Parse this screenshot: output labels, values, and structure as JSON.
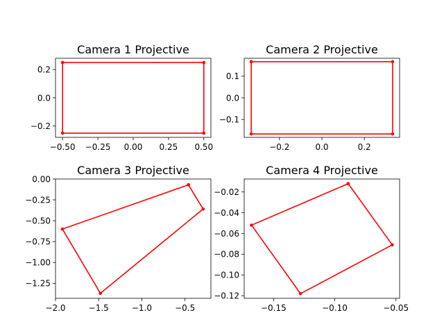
{
  "chart_data": [
    {
      "type": "line",
      "title": "Camera 1 Projective",
      "xlim": [
        -0.55,
        0.55
      ],
      "ylim": [
        -0.28,
        0.28
      ],
      "xticks": [
        -0.5,
        -0.25,
        0.0,
        0.25,
        0.5
      ],
      "xticklabels": [
        "−0.50",
        "−0.25",
        "0.00",
        "0.25",
        "0.50"
      ],
      "yticks": [
        -0.2,
        0.0,
        0.2
      ],
      "yticklabels": [
        "−0.2",
        "0.0",
        "0.2"
      ],
      "color": "#ff0000",
      "x": [
        -0.5,
        0.5,
        0.5,
        -0.5,
        -0.5
      ],
      "y": [
        0.25,
        0.25,
        -0.25,
        -0.25,
        0.25
      ]
    },
    {
      "type": "line",
      "title": "Camera 2 Projective",
      "xlim": [
        -0.366,
        0.366
      ],
      "ylim": [
        -0.183,
        0.183
      ],
      "xticks": [
        -0.2,
        0.0,
        0.2
      ],
      "xticklabels": [
        "−0.2",
        "0.0",
        "0.2"
      ],
      "yticks": [
        -0.1,
        0.0,
        0.1
      ],
      "yticklabels": [
        "−0.1",
        "0.0",
        "0.1"
      ],
      "color": "#ff0000",
      "x": [
        -0.333,
        0.333,
        0.333,
        -0.333,
        -0.333
      ],
      "y": [
        0.167,
        0.167,
        -0.167,
        -0.167,
        0.167
      ]
    },
    {
      "type": "line",
      "title": "Camera 3 Projective",
      "xlim": [
        -2.0,
        -0.2
      ],
      "ylim": [
        -1.43,
        0.0
      ],
      "xticks": [
        -2.0,
        -1.5,
        -1.0,
        -0.5
      ],
      "xticklabels": [
        "−2.0",
        "−1.5",
        "−1.0",
        "−0.5"
      ],
      "yticks": [
        0.0,
        -0.25,
        -0.5,
        -0.75,
        -1.0,
        -1.25
      ],
      "yticklabels": [
        "0.00",
        "−0.25",
        "−0.50",
        "−0.75",
        "−1.00",
        "−1.25"
      ],
      "color": "#ff0000",
      "x": [
        -0.46,
        -0.29,
        -1.48,
        -1.92,
        -0.46
      ],
      "y": [
        -0.07,
        -0.36,
        -1.37,
        -0.6,
        -0.07
      ]
    },
    {
      "type": "line",
      "title": "Camera 4 Projective",
      "xlim": [
        -0.174,
        -0.047
      ],
      "ylim": [
        -0.1225,
        -0.0075
      ],
      "xticks": [
        -0.15,
        -0.1,
        -0.05
      ],
      "xticklabels": [
        "−0.15",
        "−0.10",
        "−0.05"
      ],
      "yticks": [
        -0.02,
        -0.04,
        -0.06,
        -0.08,
        -0.1,
        -0.12
      ],
      "yticklabels": [
        "−0.02",
        "−0.04",
        "−0.06",
        "−0.08",
        "−0.10",
        "−0.12"
      ],
      "color": "#ff0000",
      "x": [
        -0.089,
        -0.053,
        -0.128,
        -0.168,
        -0.089
      ],
      "y": [
        -0.012,
        -0.071,
        -0.118,
        -0.052,
        -0.012
      ]
    }
  ]
}
